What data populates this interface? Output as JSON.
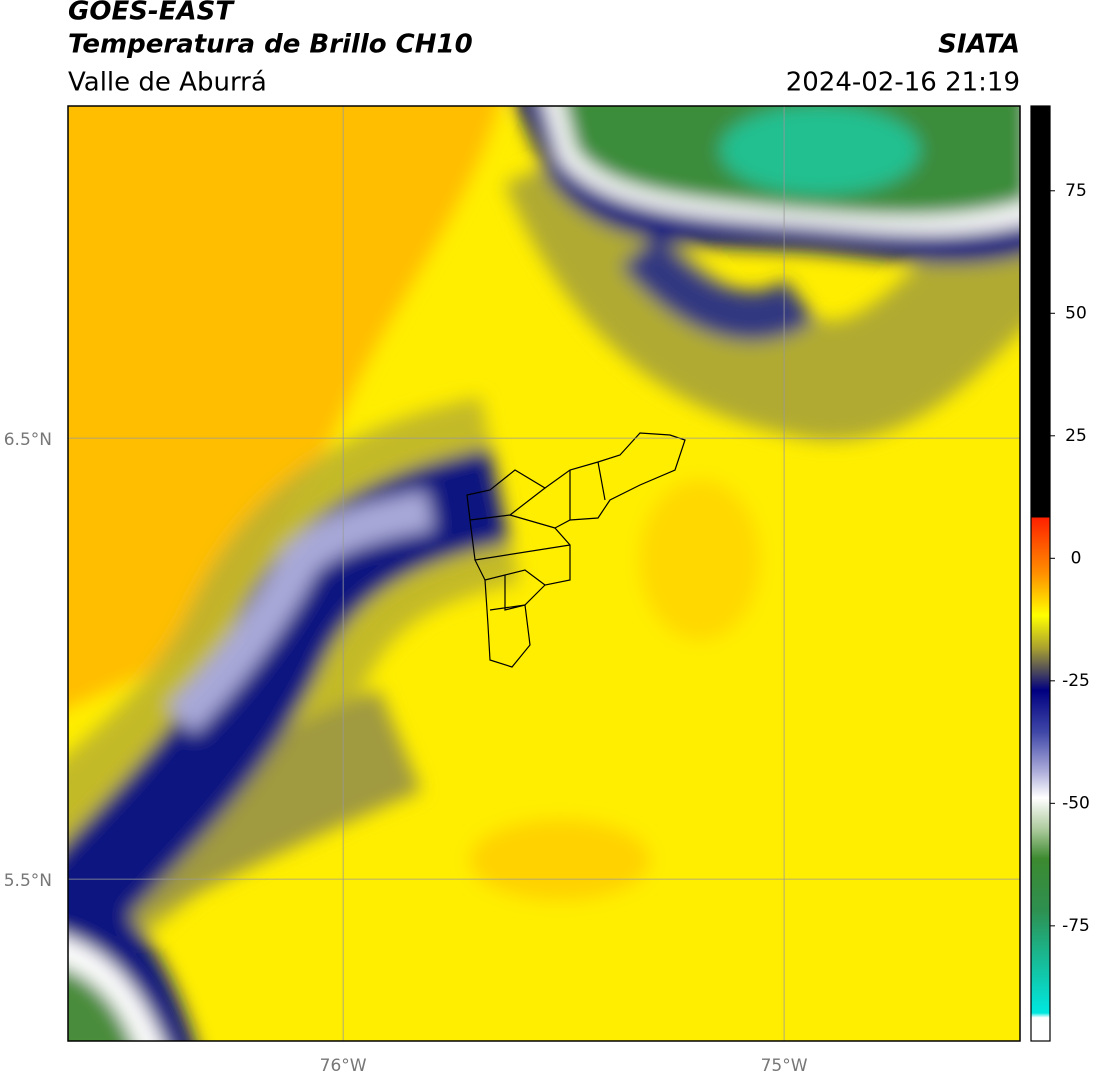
{
  "header": {
    "title": "GOES-EAST",
    "subtitle": "Temperatura de Brillo CH10",
    "region": "Valle de Aburrá",
    "source": "SIATA",
    "datetime": "2024-02-16 21:19"
  },
  "map": {
    "lonlim": [
      -76.624,
      -74.465
    ],
    "latlim": [
      5.133,
      7.253
    ],
    "lat_ticks": [
      {
        "value": 6.5,
        "label": "6.5°N"
      },
      {
        "value": 5.5,
        "label": "5.5°N"
      }
    ],
    "lon_ticks": [
      {
        "value": -76,
        "label": "76°W"
      },
      {
        "value": -75,
        "label": "75°W"
      }
    ]
  },
  "colorbar": {
    "lim": [
      -98.5,
      92.3
    ],
    "ticks": [
      75,
      50,
      25,
      0,
      -25,
      -50,
      -75
    ]
  }
}
